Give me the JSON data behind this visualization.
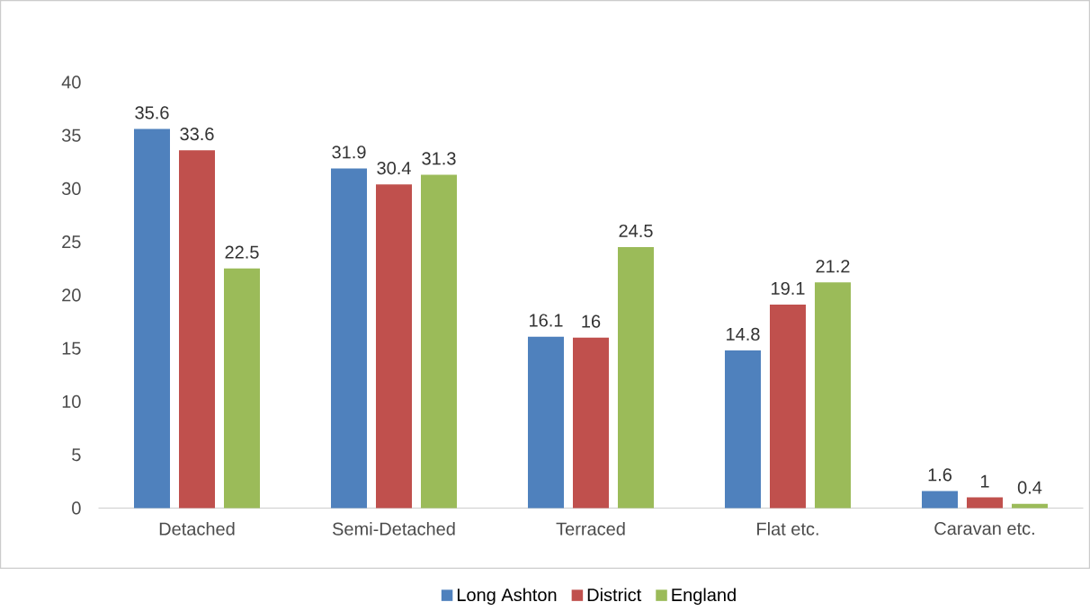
{
  "chart_data": {
    "type": "bar",
    "categories": [
      "Detached",
      "Semi-Detached",
      "Terraced",
      "Flat etc.",
      "Caravan etc."
    ],
    "series": [
      {
        "name": "Long Ashton",
        "color": "#4f81bd",
        "values": [
          35.6,
          31.9,
          16.1,
          14.8,
          1.6
        ]
      },
      {
        "name": "District",
        "color": "#c0504d",
        "values": [
          33.6,
          30.4,
          16,
          19.1,
          1
        ]
      },
      {
        "name": "England",
        "color": "#9bbb59",
        "values": [
          22.5,
          31.3,
          24.5,
          21.2,
          0.4
        ]
      }
    ],
    "ylim": [
      0,
      40
    ],
    "yticks": [
      0,
      5,
      10,
      15,
      20,
      25,
      30,
      35,
      40
    ],
    "legend": "bottom",
    "data_labels": true
  }
}
